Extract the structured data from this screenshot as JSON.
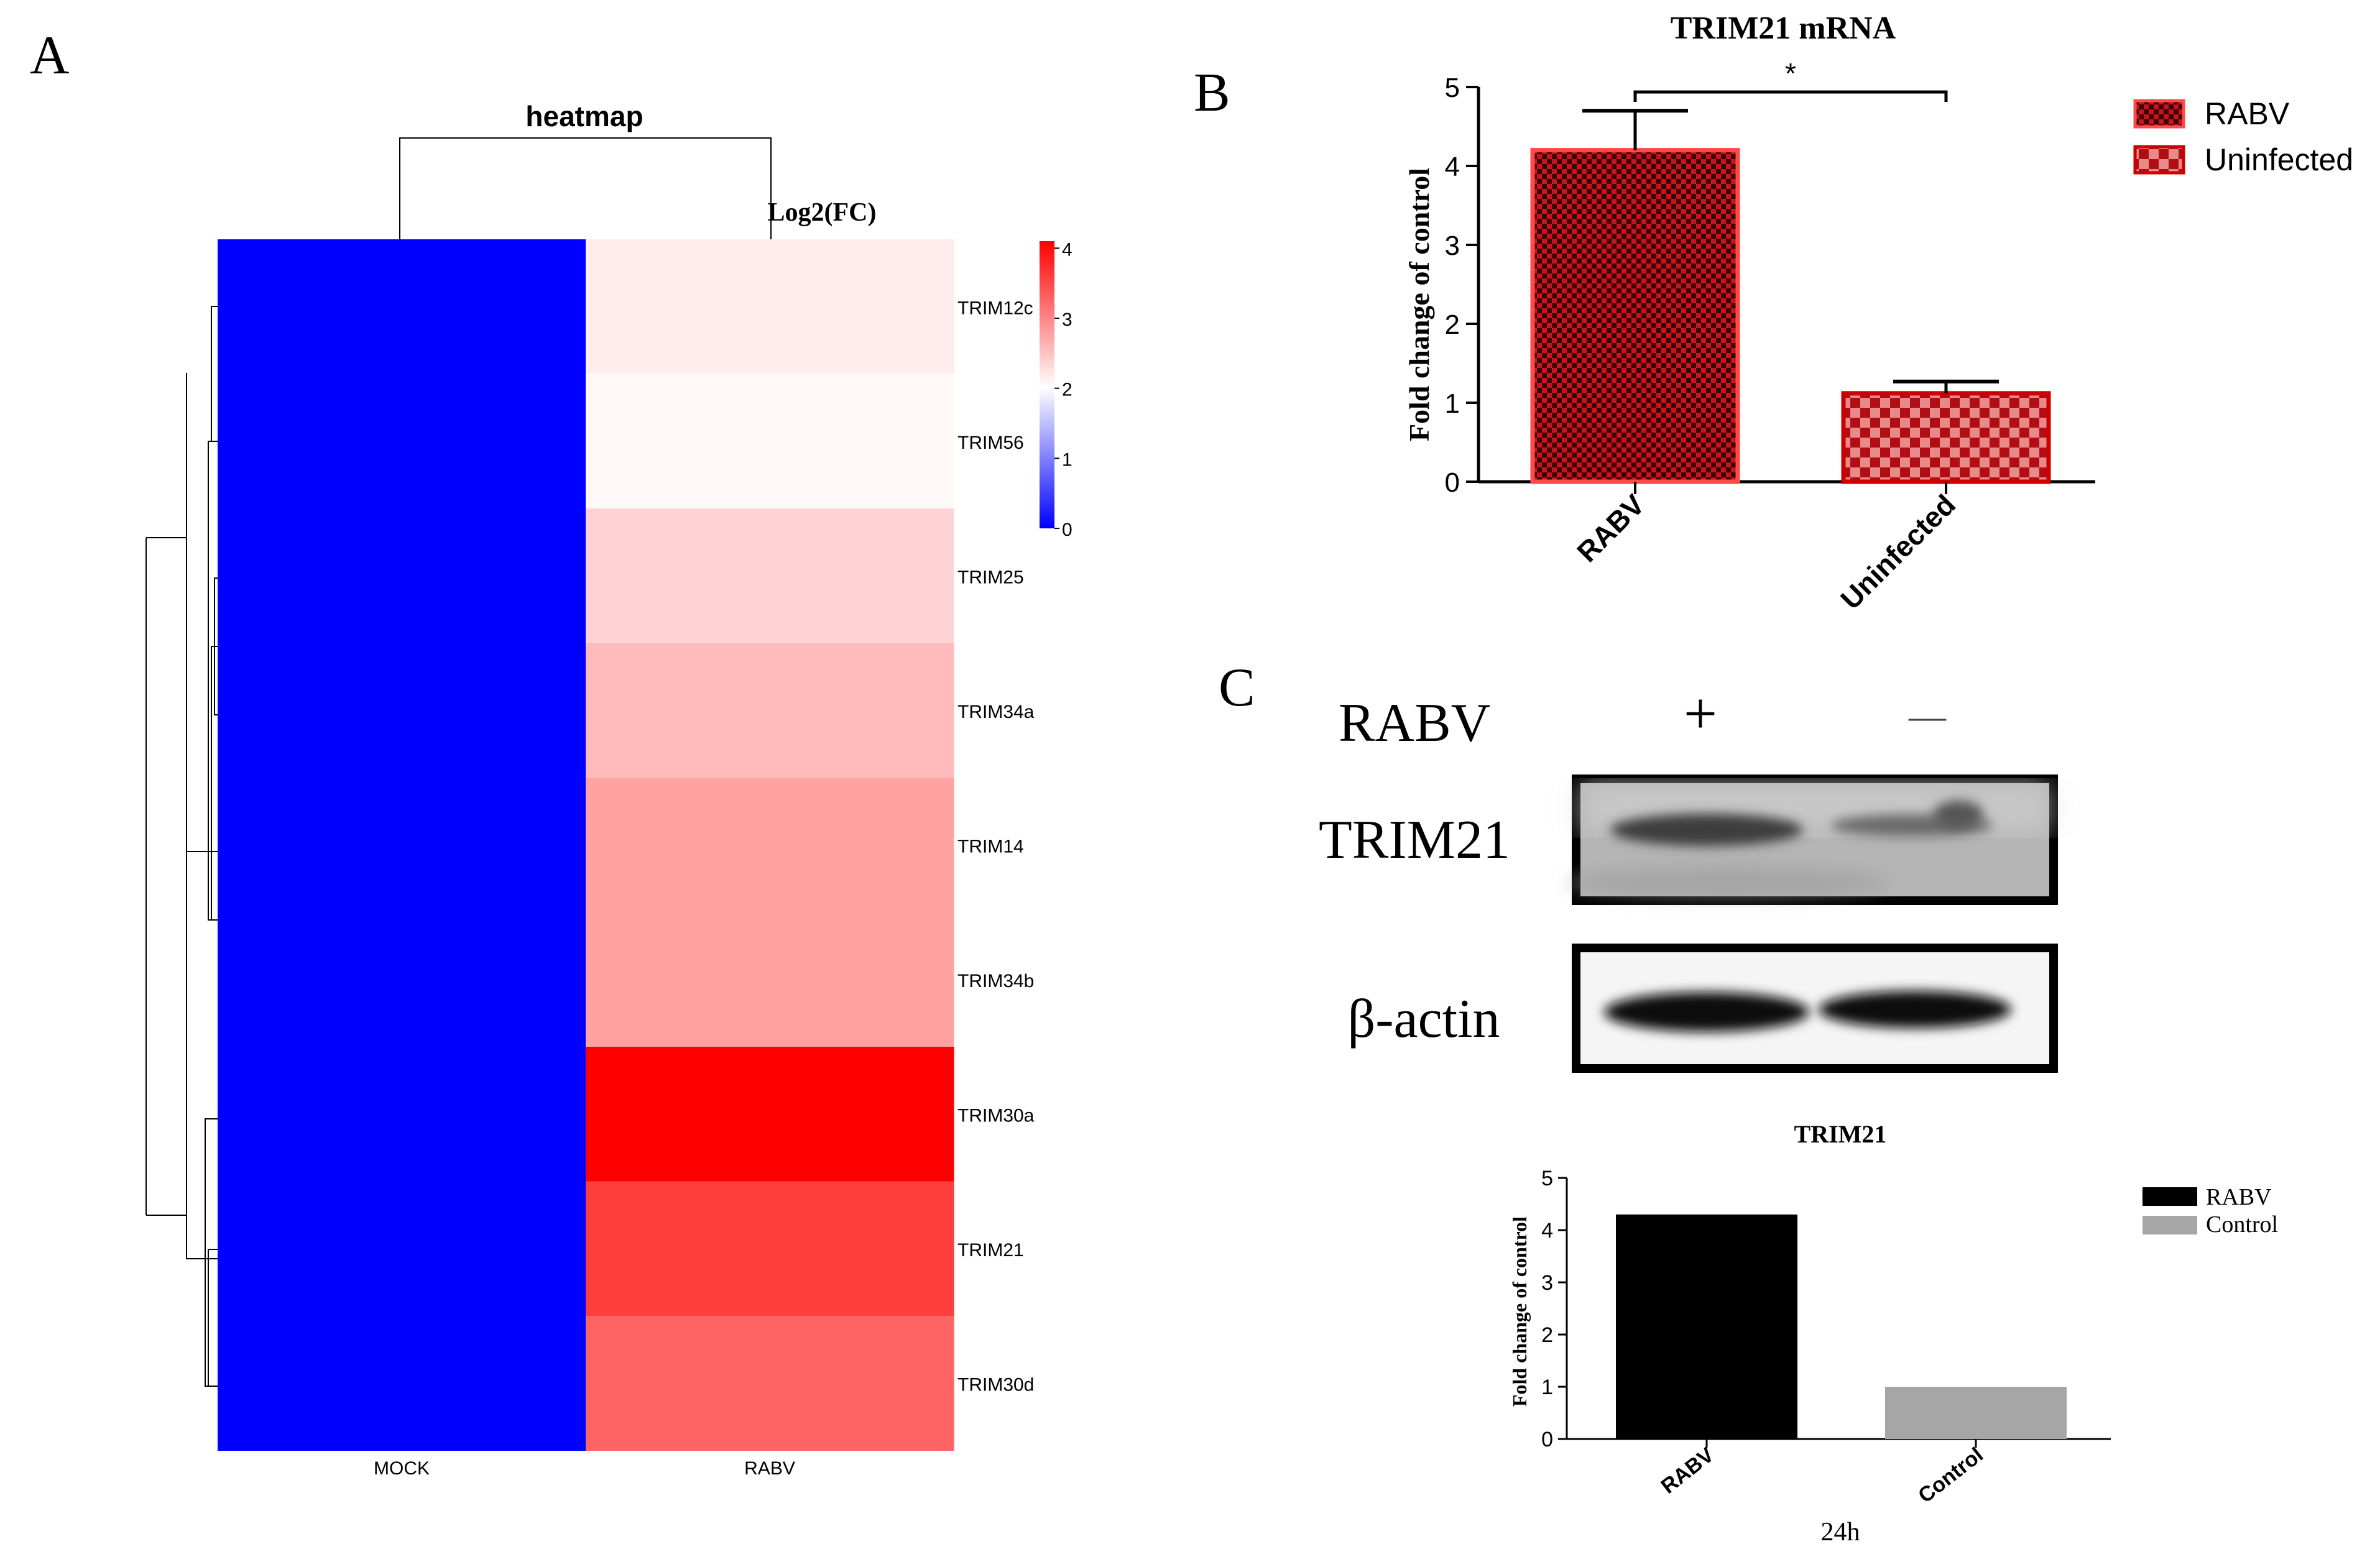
{
  "panels": {
    "A": "A",
    "B": "B",
    "C": "C"
  },
  "chart_data": [
    {
      "id": "heatmap",
      "type": "heatmap",
      "title": "heatmap",
      "legend_title": "Log2(FC)",
      "columns": [
        "MOCK",
        "RABV"
      ],
      "rows": [
        "TRIM12c",
        "TRIM56",
        "TRIM25",
        "TRIM34a",
        "TRIM14",
        "TRIM34b",
        "TRIM30a",
        "TRIM21",
        "TRIM30d"
      ],
      "values": [
        [
          0,
          2.2
        ],
        [
          0,
          2.1
        ],
        [
          0,
          2.4
        ],
        [
          0,
          2.6
        ],
        [
          0,
          2.8
        ],
        [
          0,
          2.8
        ],
        [
          0,
          4.1
        ],
        [
          0,
          3.6
        ],
        [
          0,
          3.3
        ]
      ],
      "scale_ticks": [
        "0",
        "1",
        "2",
        "3",
        "4"
      ],
      "scale_range": [
        0,
        4.1
      ],
      "colors": {
        "low": "#0000ff",
        "mid": "#ffffff",
        "high": "#ff0000"
      }
    },
    {
      "id": "mrna-bar",
      "type": "bar",
      "title": "TRIM21 mRNA",
      "ylabel": "Fold change of control",
      "categories": [
        "RABV",
        "Uninfected"
      ],
      "values": [
        4.2,
        1.12
      ],
      "errors": [
        0.5,
        0.15
      ],
      "ylim": [
        0,
        5
      ],
      "yticks": [
        "0",
        "1",
        "2",
        "3",
        "4",
        "5"
      ],
      "significance": "*",
      "legend": [
        "RABV",
        "Uninfected"
      ],
      "colors": {
        "bar_fill": "#b3121b",
        "bar_edge": "#ff4a4a",
        "bar_edge_2": "#cc0000"
      }
    },
    {
      "id": "wb-quant",
      "type": "bar",
      "title": "TRIM21",
      "ylabel": "Fold change of control",
      "xlabel": "24h",
      "categories": [
        "RABV",
        "Control"
      ],
      "values": [
        4.3,
        1.0
      ],
      "ylim": [
        0,
        5
      ],
      "yticks": [
        "0",
        "1",
        "2",
        "3",
        "4",
        "5"
      ],
      "legend": [
        "RABV",
        "Control"
      ],
      "colors": {
        "rabv": "#000000",
        "control": "#a6a6a6"
      }
    }
  ],
  "western_blot": {
    "condition_label": "RABV",
    "lanes": [
      "+",
      "—"
    ],
    "bands": [
      "TRIM21",
      "β-actin"
    ]
  }
}
